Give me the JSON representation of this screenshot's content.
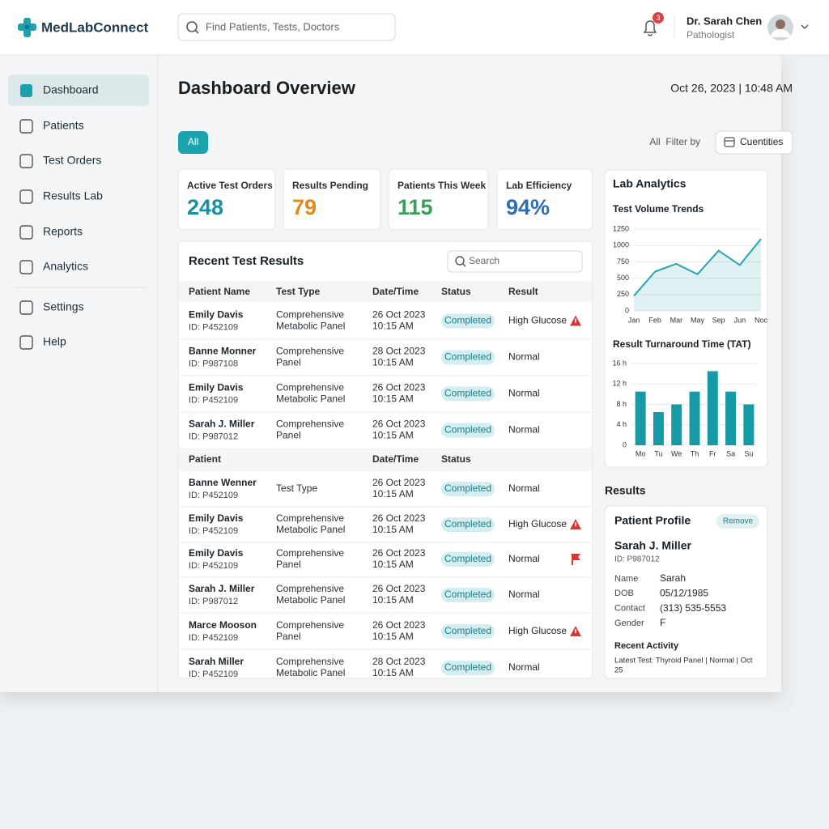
{
  "header": {
    "brand": "MedLabConnect",
    "search_placeholder": "Find Patients, Tests, Doctors",
    "notification_count": "3",
    "user_name": "Dr. Sarah Chen",
    "user_role": "Pathologist"
  },
  "sidebar": {
    "items": [
      "Dashboard",
      "Patients",
      "Test Orders",
      "Results Lab",
      "Reports",
      "Analytics",
      "Settings",
      "Help"
    ],
    "active_index": 0
  },
  "page": {
    "title": "Dashboard Overview",
    "datetime": "Oct 26, 2023 | 10:48 AM"
  },
  "filters": {
    "active": "All",
    "label": "All  Filter by",
    "button": "Cuentities"
  },
  "kpis": [
    {
      "label": "Active Test Orders",
      "value": "248",
      "color": "#1a8fa0"
    },
    {
      "label": "Results Pending",
      "value": "79",
      "color": "#e08a1e"
    },
    {
      "label": "Patients This Week",
      "value": "115",
      "color": "#3a9f58"
    },
    {
      "label": "Lab Efficiency",
      "value": "94%",
      "color": "#2f6db5"
    }
  ],
  "table": {
    "title": "Recent Test Results",
    "search_placeholder": "Search",
    "columns": [
      "Patient Name",
      "Test Type",
      "Date/Time",
      "Status",
      "Result"
    ],
    "rows": [
      {
        "name": "Emily Davis",
        "id": "ID: P452109",
        "test": [
          "Comprehensive",
          "Metabolic Panel"
        ],
        "date": "26 Oct 2023",
        "time": "10:15 AM",
        "status": "Completed",
        "result": "High Glucose",
        "icon": "warning"
      },
      {
        "name": "Banne Monner",
        "id": "ID: P987108",
        "test": [
          "Comprehensive",
          "Panel"
        ],
        "date": "28 Oct 2023",
        "time": "10:15 AM",
        "status": "Completed",
        "result": "Normal"
      },
      {
        "name": "Emily Davis",
        "id": "ID: P452109",
        "test": [
          "Comprehensive",
          "Metabolic Panel"
        ],
        "date": "26 Oct 2023",
        "time": "10:15 AM",
        "status": "Completed",
        "result": "Normal"
      },
      {
        "name": "Sarah J. Miller",
        "id": "ID: P987012",
        "test": [
          "Comprehensive",
          "Panel"
        ],
        "date": "26 Oct 2023",
        "time": "10:15 AM",
        "status": "Completed",
        "result": "Normal"
      }
    ],
    "subheader": [
      "Patient",
      "Date/Time",
      "Status"
    ],
    "rows2": [
      {
        "name": "Banne Wenner",
        "id": "ID: P452109",
        "test": [
          "Test Type"
        ],
        "date": "26 Oct 2023",
        "time": "10:15 AM",
        "status": "Completed",
        "result": "Normal"
      },
      {
        "name": "Emily Davis",
        "id": "ID: P452109",
        "test": [
          "Comprehensive",
          "Metabolic Panel"
        ],
        "date": "26 Oct 2023",
        "time": "10:15 AM",
        "status": "Completed",
        "result": "High Glucose",
        "icon": "warning"
      },
      {
        "name": "Emily Davis",
        "id": "ID: P452109",
        "test": [
          "Comprehensive",
          "Panel"
        ],
        "date": "26 Oct 2023",
        "time": "10:15 AM",
        "status": "Completed",
        "result": "Normal",
        "icon": "flag"
      },
      {
        "name": "Sarah J. Miller",
        "id": "ID: P987012",
        "test": [
          "Comprehensive",
          "Metabolic Panel"
        ],
        "date": "26 Oct 2023",
        "time": "10:15 AM",
        "status": "Completed",
        "result": "Normal"
      },
      {
        "name": "Marce Mooson",
        "id": "ID: P452109",
        "test": [
          "Comprehensive",
          "Panel"
        ],
        "date": "26 Oct 2023",
        "time": "10:15 AM",
        "status": "Completed",
        "result": "High Glucose",
        "icon": "warning"
      },
      {
        "name": "Sarah Miller",
        "id": "ID: P452109",
        "test": [
          "Comprehensive",
          "Metabolic Panel"
        ],
        "date": "28 Oct 2023",
        "time": "10:15 AM",
        "status": "Completed",
        "result": "Normal"
      }
    ]
  },
  "analytics": {
    "title": "Lab Analytics"
  },
  "results_heading": "Results",
  "profile": {
    "title": "Patient Profile",
    "action": "Remove",
    "name": "Sarah J. Miller",
    "id": "ID: P987012",
    "fields": [
      {
        "label": "Name",
        "value": "Sarah"
      },
      {
        "label": "DOB",
        "value": "05/12/1985"
      },
      {
        "label": "Contact",
        "value": "(313) 535-5553"
      },
      {
        "label": "Gender",
        "value": "F"
      }
    ],
    "activity_title": "Recent Activity",
    "activity": [
      "Latest Test: Thyroid Panel | Normal | Oct",
      "25"
    ]
  },
  "chart_data": [
    {
      "type": "line",
      "title": "Test Volume Trends",
      "categories": [
        "Jan",
        "Feb",
        "Mar",
        "May",
        "Sep",
        "Jun",
        "Noc"
      ],
      "values": [
        230,
        600,
        720,
        560,
        920,
        700,
        1100
      ],
      "color": "#2aa3ad",
      "ylim": [
        0,
        1250
      ],
      "yticks": [
        0,
        250,
        500,
        750,
        1000,
        1250
      ],
      "grid": true
    },
    {
      "type": "bar",
      "title": "Result Turnaround Time (TAT)",
      "categories": [
        "Mo",
        "Tu",
        "We",
        "Th",
        "Fr",
        "Sa",
        "Su"
      ],
      "values": [
        10.5,
        6.5,
        8,
        10.5,
        14.5,
        10.5,
        8
      ],
      "color": "#159aa6",
      "ylim": [
        0,
        16
      ],
      "yticks": [
        0,
        {
          "value": 4,
          "label": "4 h"
        },
        {
          "value": 8,
          "label": "8 h"
        },
        {
          "value": 12,
          "label": "12 h"
        },
        {
          "value": 16,
          "label": "16 h"
        }
      ],
      "grid": true
    }
  ]
}
